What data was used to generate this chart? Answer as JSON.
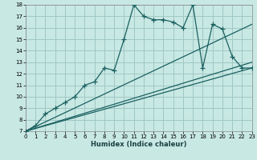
{
  "xlabel": "Humidex (Indice chaleur)",
  "bg_color": "#c8e8e4",
  "grid_color": "#a0c8c4",
  "line_color": "#1a6060",
  "xlim": [
    0,
    23
  ],
  "ylim": [
    7,
    18
  ],
  "xticks": [
    0,
    1,
    2,
    3,
    4,
    5,
    6,
    7,
    8,
    9,
    10,
    11,
    12,
    13,
    14,
    15,
    16,
    17,
    18,
    19,
    20,
    21,
    22,
    23
  ],
  "yticks": [
    7,
    8,
    9,
    10,
    11,
    12,
    13,
    14,
    15,
    16,
    17,
    18
  ],
  "straight_lines": [
    {
      "x": [
        0,
        23
      ],
      "y": [
        7,
        12.5
      ]
    },
    {
      "x": [
        0,
        23
      ],
      "y": [
        7,
        13.0
      ]
    },
    {
      "x": [
        0,
        23
      ],
      "y": [
        7,
        16.3
      ]
    }
  ],
  "main_x": [
    0,
    1,
    2,
    3,
    4,
    5,
    6,
    7,
    8,
    9,
    10,
    11,
    12,
    13,
    14,
    15,
    16,
    17,
    18,
    19,
    20,
    21,
    22,
    23
  ],
  "main_y": [
    7,
    7.5,
    8.5,
    9.0,
    9.5,
    10.0,
    11.0,
    11.3,
    12.5,
    12.3,
    15.0,
    18.0,
    17.0,
    16.7,
    16.7,
    16.5,
    16.0,
    18.0,
    12.5,
    16.3,
    15.9,
    13.5,
    12.5,
    12.5
  ]
}
